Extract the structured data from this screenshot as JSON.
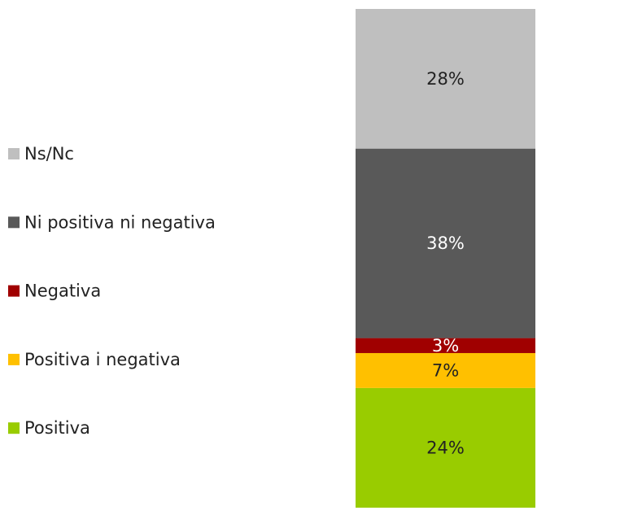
{
  "chart_data": {
    "type": "bar",
    "stacked": true,
    "categories": [
      null
    ],
    "ylim": [
      0,
      100
    ],
    "series": [
      {
        "name": "Positiva",
        "color": "#99cc00",
        "values": [
          24
        ],
        "value_labels": [
          "24%"
        ]
      },
      {
        "name": "Positiva i negativa",
        "color": "#ffc000",
        "values": [
          7
        ],
        "value_labels": [
          "7%"
        ]
      },
      {
        "name": "Negativa",
        "color": "#a00000",
        "values": [
          3
        ],
        "value_labels": [
          "3%"
        ]
      },
      {
        "name": "Ni positiva ni negativa",
        "color": "#595959",
        "values": [
          38
        ],
        "value_labels": [
          "38%"
        ]
      },
      {
        "name": "Ns/Nc",
        "color": "#bfbfbf",
        "values": [
          28
        ],
        "value_labels": [
          "28%"
        ]
      }
    ],
    "legend": "left"
  }
}
